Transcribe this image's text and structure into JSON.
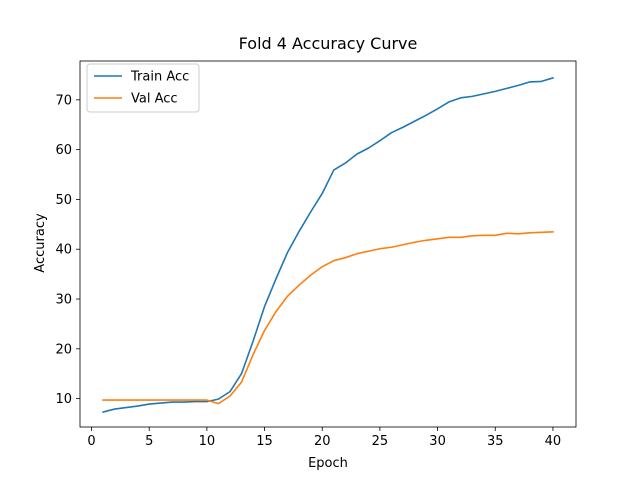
{
  "chart_data": {
    "type": "line",
    "title": "Fold 4 Accuracy Curve",
    "xlabel": "Epoch",
    "ylabel": "Accuracy",
    "xlim": [
      -1,
      42
    ],
    "ylim": [
      4.3,
      77.8
    ],
    "xticks": [
      0,
      5,
      10,
      15,
      20,
      25,
      30,
      35,
      40
    ],
    "yticks": [
      10,
      20,
      30,
      40,
      50,
      60,
      70
    ],
    "grid": false,
    "legend_position": "upper-left",
    "x": [
      1,
      2,
      3,
      4,
      5,
      6,
      7,
      8,
      9,
      10,
      11,
      12,
      13,
      14,
      15,
      16,
      17,
      18,
      19,
      20,
      21,
      22,
      23,
      24,
      25,
      26,
      27,
      28,
      29,
      30,
      31,
      32,
      33,
      34,
      35,
      36,
      37,
      38,
      39,
      40
    ],
    "series": [
      {
        "name": "Train Acc",
        "color": "#1f77b4",
        "values": [
          7.3,
          7.9,
          8.2,
          8.5,
          8.9,
          9.1,
          9.3,
          9.3,
          9.4,
          9.4,
          9.9,
          11.4,
          15.0,
          21.5,
          28.5,
          34.1,
          39.4,
          43.6,
          47.5,
          51.2,
          55.9,
          57.3,
          59.1,
          60.3,
          61.8,
          63.4,
          64.5,
          65.7,
          66.9,
          68.2,
          69.6,
          70.4,
          70.7,
          71.2,
          71.7,
          72.3,
          72.9,
          73.6,
          73.7,
          74.4
        ]
      },
      {
        "name": "Val Acc",
        "color": "#ff7f0e",
        "values": [
          9.7,
          9.7,
          9.7,
          9.7,
          9.7,
          9.7,
          9.7,
          9.7,
          9.7,
          9.7,
          9.0,
          10.5,
          13.3,
          18.8,
          23.7,
          27.5,
          30.6,
          32.8,
          34.8,
          36.5,
          37.7,
          38.3,
          39.1,
          39.6,
          40.1,
          40.4,
          40.9,
          41.4,
          41.8,
          42.1,
          42.4,
          42.4,
          42.7,
          42.8,
          42.8,
          43.2,
          43.1,
          43.3,
          43.4,
          43.5
        ]
      }
    ]
  }
}
